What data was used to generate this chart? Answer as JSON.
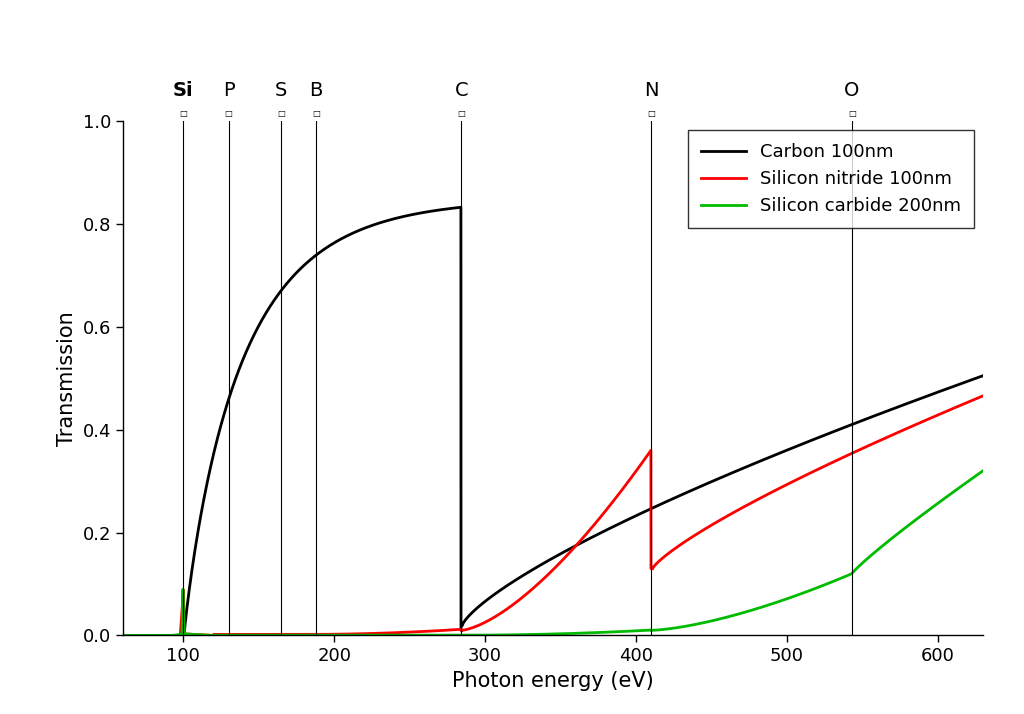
{
  "xlabel": "Photon energy (eV)",
  "ylabel": "Transmission",
  "xlim": [
    60,
    630
  ],
  "ylim": [
    0.0,
    1.0
  ],
  "element_lines": [
    {
      "label": "Si",
      "x": 99.8,
      "bold": true
    },
    {
      "label": "P",
      "x": 130.0,
      "bold": false
    },
    {
      "label": "S",
      "x": 165.0,
      "bold": false
    },
    {
      "label": "B",
      "x": 188.0,
      "bold": false
    },
    {
      "label": "C",
      "x": 284.2,
      "bold": false
    },
    {
      "label": "N",
      "x": 409.9,
      "bold": false
    },
    {
      "label": "O",
      "x": 543.1,
      "bold": false
    }
  ],
  "legend_entries": [
    {
      "label": "Carbon 100nm",
      "color": "black"
    },
    {
      "label": "Silicon nitride 100nm",
      "color": "red"
    },
    {
      "label": "Silicon carbide 200nm",
      "color": "#00bb00"
    }
  ],
  "background_color": "#ffffff",
  "xticks": [
    100,
    200,
    300,
    400,
    500,
    600
  ],
  "yticks": [
    0.0,
    0.2,
    0.4,
    0.6,
    0.8,
    1.0
  ]
}
